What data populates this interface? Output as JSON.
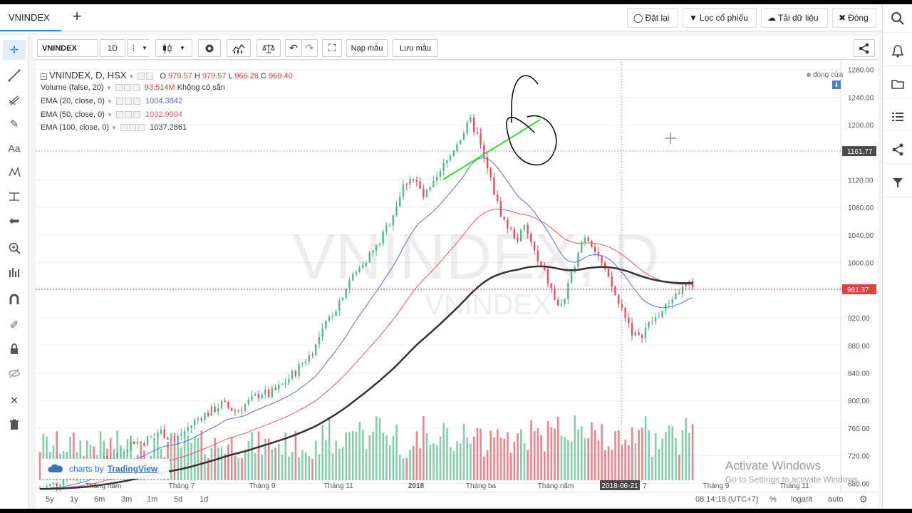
{
  "tab": {
    "title": "VNINDEX",
    "add_label": "+"
  },
  "top_actions": [
    {
      "icon": "reset-icon",
      "label": "Đặt lại"
    },
    {
      "icon": "filter-icon",
      "label": "Lọc cổ phiếu"
    },
    {
      "icon": "cloud-download-icon",
      "label": "Tải dữ liệu"
    },
    {
      "icon": "close-icon",
      "label": "Đóng"
    }
  ],
  "toolbar": {
    "symbol": "VNINDEX",
    "interval": "1D",
    "load_template": "Nạp mẫu",
    "save_template": "Lưu mẫu"
  },
  "legend": {
    "symbol_line": "VNINDEX, D, HSX",
    "ohlc": {
      "o_label": "O",
      "o": "979.57",
      "h_label": "H",
      "h": "979.57",
      "l_label": "L",
      "l": "966.28",
      "c_label": "C",
      "c": "969.40"
    },
    "volume_label": "Volume (false, 20)",
    "volume_value": "93.514M",
    "volume_note": "Không có sẵn",
    "ema20_label": "EMA (20, close, 0)",
    "ema20_value": "1004.3842",
    "ema50_label": "EMA (50, close, 0)",
    "ema50_value": "1032.9994",
    "ema100_label": "EMA (100, close, 0)",
    "ema100_value": "1037.2861",
    "market_status": "đóng cửa"
  },
  "watermark": {
    "big": "VNINDEX, D",
    "small": "VNINDEX"
  },
  "price_axis": {
    "ticks": [
      "1280.00",
      "1240.00",
      "1200.00",
      "1161.77",
      "1120.00",
      "1080.00",
      "1040.00",
      "1000.00",
      "961.37",
      "920.00",
      "880.00",
      "840.00",
      "800.00",
      "760.00",
      "720.00",
      "680.00"
    ],
    "crosshair_label": "1161.77",
    "last_price_label": "961.37"
  },
  "time_axis": {
    "labels": [
      "Tháng năm",
      "Tháng 7",
      "Tháng 9",
      "Tháng 11",
      "2018",
      "Tháng ba",
      "Tháng năm",
      "2018-06-21",
      "7",
      "Tháng 9",
      "Tháng 11"
    ]
  },
  "bottom": {
    "ranges": [
      "5y",
      "1y",
      "6m",
      "3m",
      "1m",
      "5d",
      "1d"
    ],
    "clock": "08:14:18 (UTC+7)",
    "percent": "%",
    "log": "logarit",
    "auto": "auto"
  },
  "branding": {
    "prefix": "charts by",
    "name": "TradingView"
  },
  "os_overlay": {
    "title": "Activate Windows",
    "subtitle": "Go to Settings to activate Windows."
  },
  "colors": {
    "up": "#53b987",
    "down": "#eb4d5c",
    "ema20": "#5a6fd6",
    "ema50": "#e06060",
    "ema100": "#333333",
    "trendline": "#33dd33",
    "accent": "#1e88e5"
  },
  "chart_data": {
    "type": "candlestick",
    "price_range": [
      668,
      1292
    ],
    "series": [
      {
        "name": "EMA (20, close, 0)",
        "values": []
      },
      {
        "name": "EMA (50, close, 0)",
        "values": []
      },
      {
        "name": "EMA (100, close, 0)",
        "values": []
      }
    ],
    "close_approx": [
      672,
      675,
      678,
      683,
      690,
      688,
      695,
      700,
      706,
      712,
      715,
      720,
      725,
      735,
      742,
      738,
      744,
      750,
      755,
      748,
      742,
      752,
      760,
      770,
      778,
      782,
      788,
      795,
      790,
      785,
      790,
      798,
      805,
      812,
      808,
      815,
      822,
      832,
      842,
      855,
      865,
      880,
      900,
      920,
      935,
      955,
      975,
      985,
      1000,
      1012,
      1022,
      1040,
      1060,
      1085,
      1110,
      1125,
      1115,
      1095,
      1105,
      1120,
      1140,
      1155,
      1175,
      1190,
      1205,
      1185,
      1150,
      1120,
      1085,
      1060,
      1045,
      1035,
      1050,
      1030,
      1000,
      985,
      960,
      935,
      948,
      980,
      1020,
      1040,
      1030,
      1010,
      985,
      965,
      940,
      925,
      900,
      890,
      905,
      915,
      925,
      935,
      950,
      958,
      965,
      969
    ]
  }
}
